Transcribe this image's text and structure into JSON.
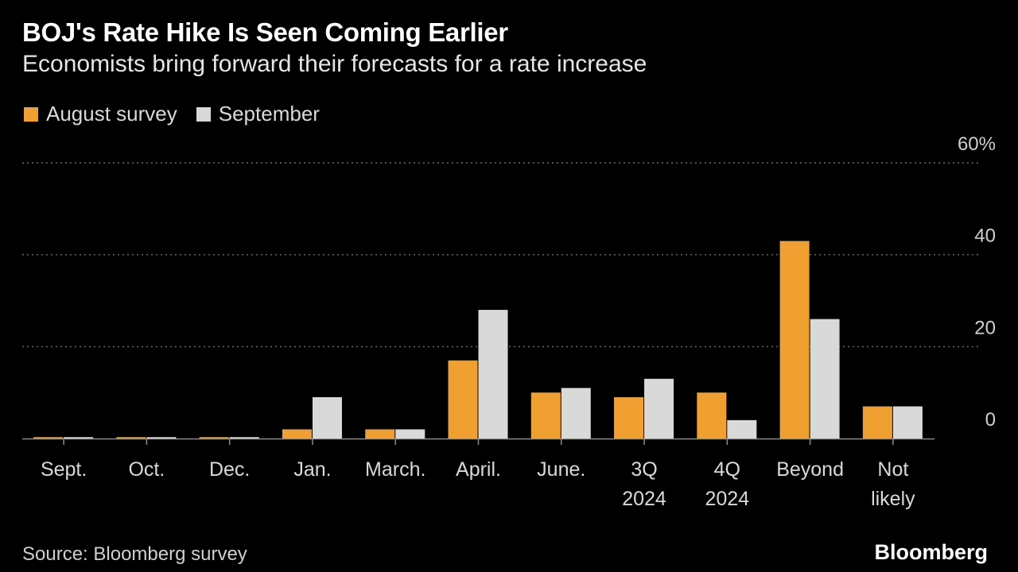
{
  "header": {
    "title": "BOJ's Rate Hike Is Seen Coming Earlier",
    "subtitle": "Economists bring forward their forecasts for a rate increase"
  },
  "footer": {
    "source": "Source: Bloomberg survey",
    "brand": "Bloomberg"
  },
  "chart_data": {
    "type": "bar",
    "title": "BOJ's Rate Hike Is Seen Coming Earlier",
    "subtitle": "Economists bring forward their forecasts for a rate increase",
    "xlabel": "",
    "ylabel": "",
    "ylim": [
      0,
      60
    ],
    "yticks": [
      {
        "value": 0,
        "label": "0"
      },
      {
        "value": 20,
        "label": "20"
      },
      {
        "value": 40,
        "label": "40"
      },
      {
        "value": 60,
        "label": "60%"
      }
    ],
    "grid": true,
    "legend_position": "top-left",
    "categories": [
      [
        "Sept."
      ],
      [
        "Oct."
      ],
      [
        "Dec."
      ],
      [
        "Jan."
      ],
      [
        "March."
      ],
      [
        "April."
      ],
      [
        "June."
      ],
      [
        "3Q",
        "2024"
      ],
      [
        "4Q",
        "2024"
      ],
      [
        "Beyond"
      ],
      [
        "Not",
        "likely"
      ]
    ],
    "series": [
      {
        "name": "August survey",
        "color": "#f0a030",
        "values": [
          0.3,
          0.3,
          0.3,
          2,
          2,
          17,
          10,
          9,
          10,
          43,
          7
        ]
      },
      {
        "name": "September",
        "color": "#d9d9d9",
        "values": [
          0.3,
          0.3,
          0.3,
          9,
          2,
          28,
          11,
          13,
          4,
          26,
          7
        ]
      }
    ]
  }
}
